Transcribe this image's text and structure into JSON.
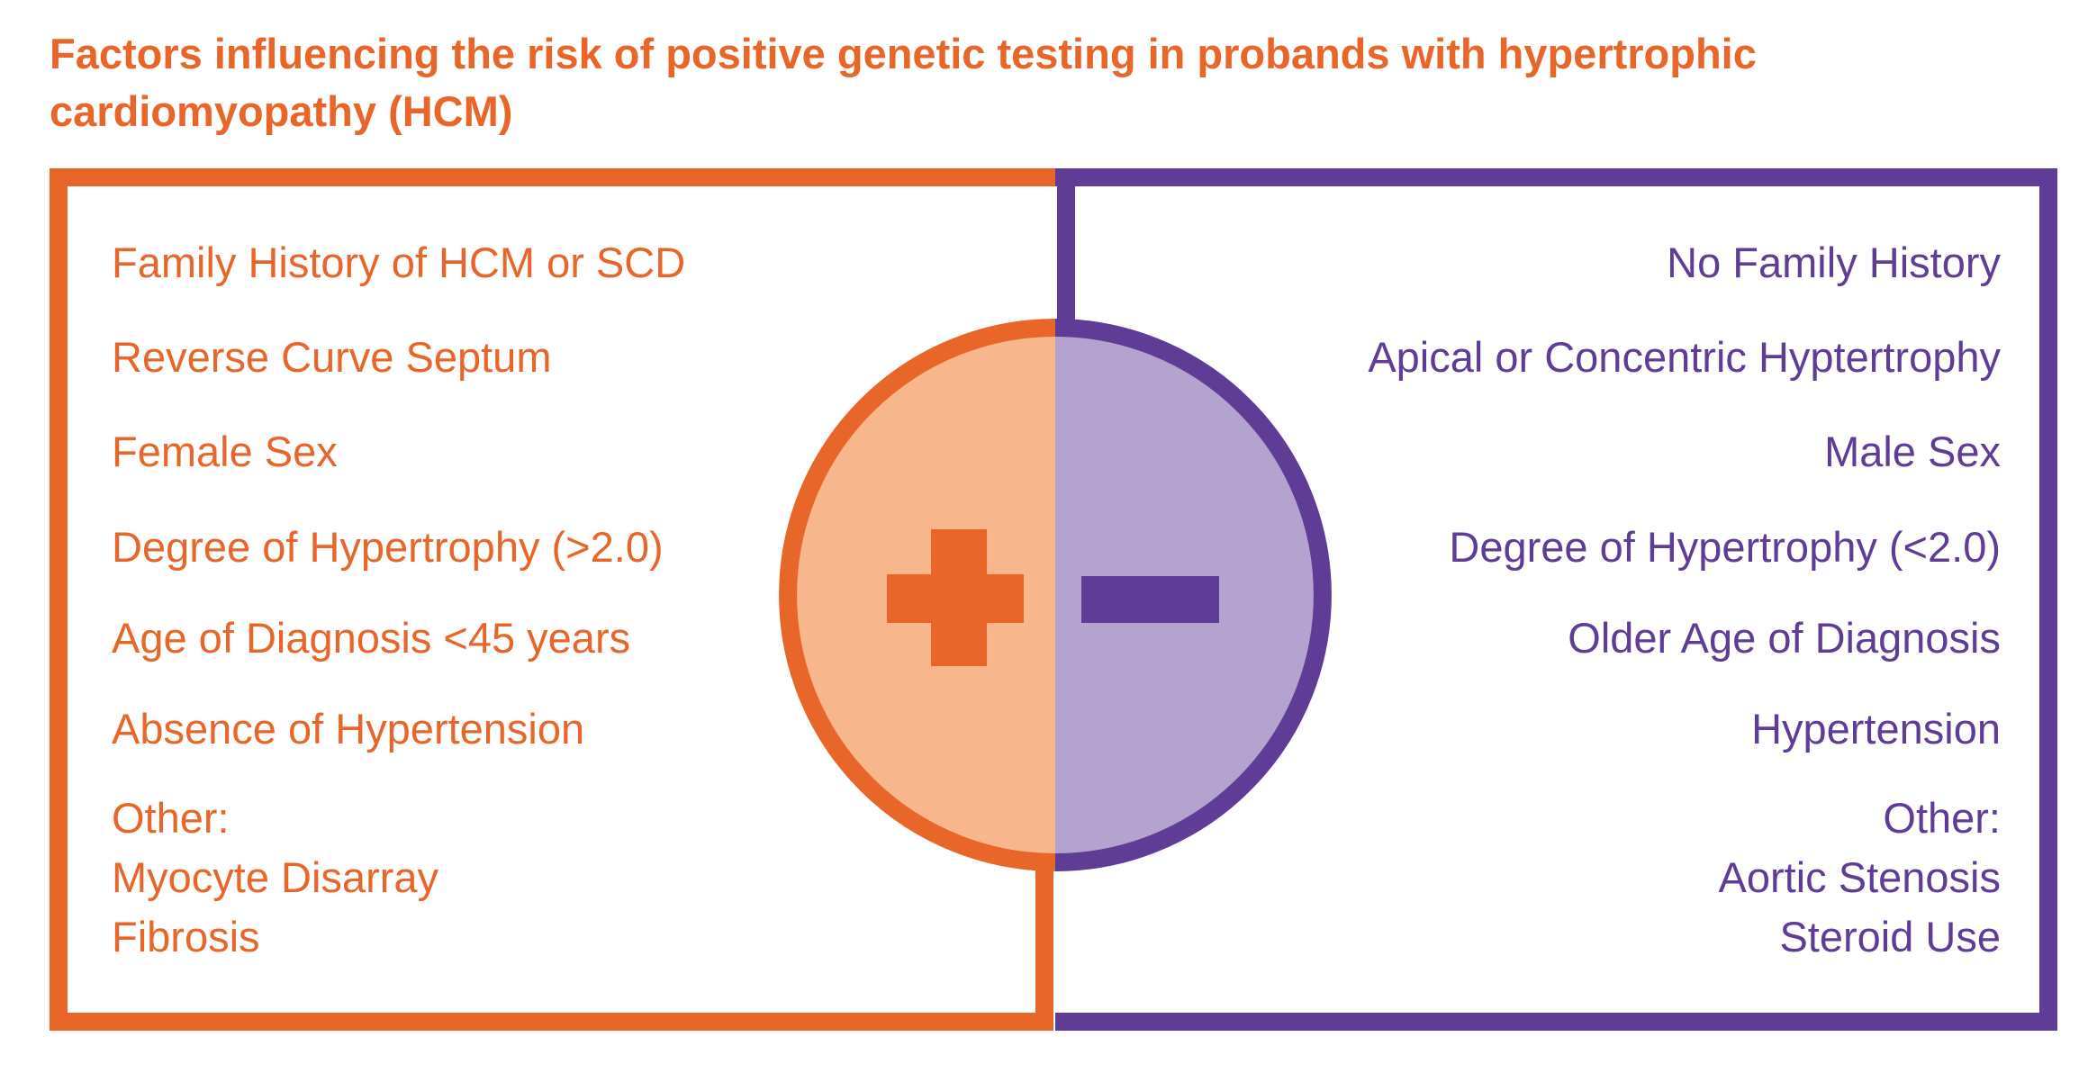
{
  "title": "Factors influencing the risk of positive genetic testing in probands with hypertrophic cardiomyopathy (HCM)",
  "colors": {
    "positive": "#E8662A",
    "positive_fill": "#F8B68C",
    "negative": "#5F3D97",
    "negative_fill": "#B4A3CF"
  },
  "positive_factors": {
    "items": [
      "Family History of HCM or SCD",
      "Reverse Curve Septum",
      "Female Sex",
      "Degree of Hypertrophy (>2.0)",
      "Age of Diagnosis <45 years",
      "Absence of Hypertension"
    ],
    "other_label": "Other:",
    "other_items": [
      "Myocyte Disarray",
      "Fibrosis"
    ]
  },
  "negative_factors": {
    "items": [
      "No Family History",
      "Apical or Concentric Hyptertrophy",
      "Male Sex",
      "Degree of Hypertrophy (<2.0)",
      "Older Age of Diagnosis",
      "Hypertension"
    ],
    "other_label": "Other:",
    "other_items": [
      "Aortic Stenosis",
      "Steroid Use"
    ]
  },
  "icons": {
    "positive": "plus-icon",
    "negative": "minus-icon"
  }
}
